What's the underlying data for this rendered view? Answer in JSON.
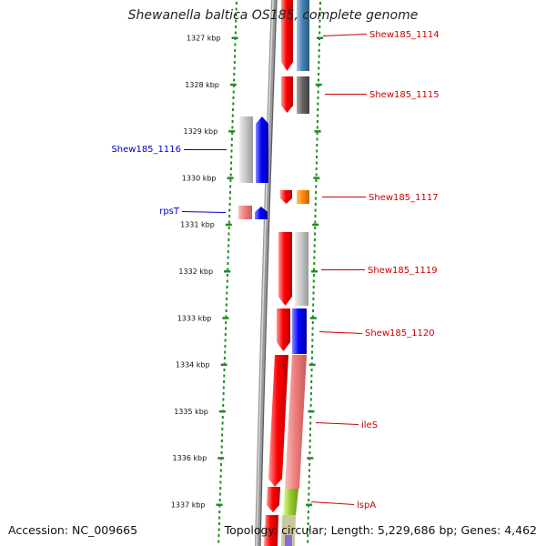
{
  "title": "Shewanella baltica OS185, complete genome",
  "footer": {
    "accession": "Accession: NC_009665",
    "summary": "Topology: circular; Length: 5,229,686 bp; Genes: 4,462"
  },
  "ruler": {
    "unit": "kbp",
    "ticks": [
      "1327 kbp",
      "1328 kbp",
      "1329 kbp",
      "1330 kbp",
      "1331 kbp",
      "1332 kbp",
      "1333 kbp",
      "1334 kbp",
      "1335 kbp",
      "1336 kbp",
      "1337 kbp"
    ]
  },
  "colors": {
    "forward_label": "#cc0000",
    "reverse_label": "#0000cc",
    "forward_cds": "#ff0000",
    "reverse_cds": "#0000ff",
    "ruler_dots": "#228b22",
    "backbone": "#808080"
  },
  "genes": [
    {
      "label": "Shew185_1114",
      "strand": "forward",
      "color": "#cc0000"
    },
    {
      "label": "Shew185_1115",
      "strand": "forward",
      "color": "#cc0000"
    },
    {
      "label": "Shew185_1116",
      "strand": "reverse",
      "color": "#0000cc"
    },
    {
      "label": "Shew185_1117",
      "strand": "forward",
      "color": "#cc0000"
    },
    {
      "label": "rpsT",
      "strand": "reverse",
      "color": "#0000cc"
    },
    {
      "label": "Shew185_1119",
      "strand": "forward",
      "color": "#cc0000"
    },
    {
      "label": "Shew185_1120",
      "strand": "forward",
      "color": "#cc0000"
    },
    {
      "label": "ileS",
      "strand": "forward",
      "color": "#cc0000"
    },
    {
      "label": "lspA",
      "strand": "forward",
      "color": "#cc0000"
    }
  ]
}
